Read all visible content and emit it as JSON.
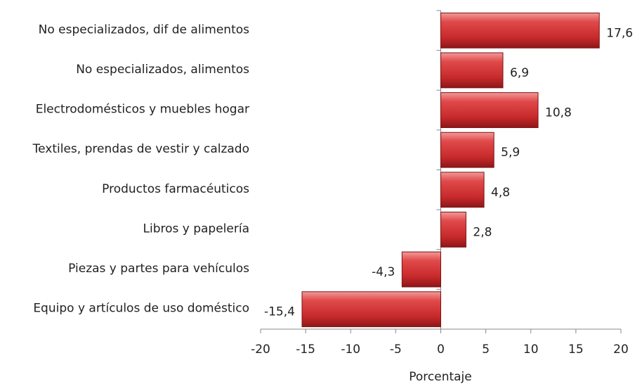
{
  "chart_data": {
    "type": "bar",
    "orientation": "horizontal",
    "x_label": "Porcentaje",
    "categories": [
      "No especializados, dif de alimentos",
      "No especializados, alimentos",
      "Electrodomésticos y muebles hogar",
      "Textiles, prendas de vestir y calzado",
      "Productos farmacéuticos",
      "Libros y papelería",
      "Piezas y partes para vehículos",
      "Equipo y artículos de uso doméstico"
    ],
    "values": [
      17.6,
      6.9,
      10.8,
      5.9,
      4.8,
      2.8,
      -4.3,
      -15.4
    ],
    "value_labels": [
      "17,6",
      "6,9",
      "10,8",
      "5,9",
      "4,8",
      "2,8",
      "-4,3",
      "-15,4"
    ],
    "color": "#d03436",
    "xlim": [
      -20,
      20
    ],
    "xticks": [
      -20,
      -15,
      -10,
      -5,
      0,
      5,
      10,
      15,
      20
    ]
  }
}
